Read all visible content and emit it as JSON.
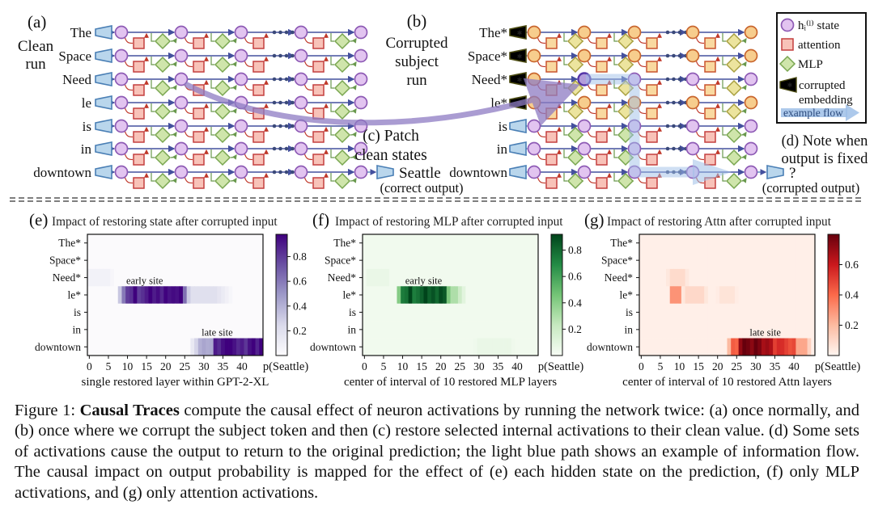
{
  "diagram": {
    "panel_a": {
      "label": "(a)",
      "title_lines": [
        "Clean",
        "run"
      ],
      "tokens": [
        "The",
        "Space",
        "Need",
        "le",
        "is",
        "in",
        "downtown"
      ],
      "output_label": "Seattle",
      "output_sub": "(correct output)"
    },
    "panel_b": {
      "label": "(b)",
      "title_lines": [
        "Corrupted",
        "subject",
        "run"
      ],
      "tokens": [
        "The*",
        "Space*",
        "Need*",
        "le*",
        "is",
        "in",
        "downtown"
      ],
      "corrupted_count": 4,
      "output_label": "?",
      "output_sub": "(corrupted output)"
    },
    "panel_c_lines": [
      "(c) Patch",
      "clean states"
    ],
    "panel_d_lines": [
      "(d) Note when",
      "output is fixed"
    ],
    "legend": {
      "items": [
        {
          "icon": "state-circle-icon",
          "label": "hᵢ⁽ˡ⁾ state"
        },
        {
          "icon": "attention-square-icon",
          "label": "attention"
        },
        {
          "icon": "mlp-diamond-icon",
          "label": "MLP"
        },
        {
          "icon": "corrupted-embedding-icon",
          "label": "corrupted",
          "label2": "embedding"
        },
        {
          "icon": "example-flow-arrow-icon",
          "label": "example flow"
        }
      ]
    },
    "colors": {
      "state_fill": "#e2c4f0",
      "state_stroke": "#8e5bb5",
      "corrupt_fill": "#f7cd8d",
      "corrupt_stroke": "#c9662e",
      "patch_fill": "#b39ddb",
      "patch_stroke": "#5636a8",
      "attn_fill": "#f8c2b8",
      "attn_stroke": "#c43f3f",
      "attn_corrupt_fill": "#f9d9a0",
      "attn_corrupt_stroke": "#c9532e",
      "mlp_fill": "#cfe5ab",
      "mlp_stroke": "#79a650",
      "mlp_corrupt_fill": "#ece49e",
      "mlp_corrupt_stroke": "#a8a041",
      "embed_fill": "#b9d6ec",
      "embed_stroke": "#4a7fb5",
      "embed_corrupt_fill": "#f3e233",
      "embed_corrupt_stroke": "#4a4a10",
      "line": "#44509e",
      "red": "#c0392b",
      "green": "#6a994e",
      "dots": "#3b4a7a",
      "patch_arrow": "#8e7cc3",
      "flow": "#9fc0e8"
    }
  },
  "chart_data": [
    {
      "id": "e",
      "type": "heatmap",
      "panel_label": "(e)",
      "title": "Impact of restoring state after corrupted input",
      "rows": [
        "The*",
        "Space*",
        "Need*",
        "le*",
        "is",
        "in",
        "downtown"
      ],
      "x_ticks": [
        0,
        5,
        10,
        15,
        20,
        25,
        30,
        35,
        40
      ],
      "n_layers": 46,
      "xlabel": "single restored layer within GPT-2-XL",
      "colorbar_label": "p(Seattle)",
      "colorbar_ticks": [
        0.2,
        0.4,
        0.6,
        0.8
      ],
      "vmax": 0.98,
      "base": 0.01,
      "colormap": "purples",
      "annotations": [
        {
          "text": "early site",
          "row": "le*",
          "x": 15
        },
        {
          "text": "late site",
          "row": "downtown",
          "x": 34
        }
      ],
      "blobs": [
        {
          "row": "Need*",
          "from": 0,
          "to": 5,
          "peak": 0.07,
          "fade": 2
        },
        {
          "row": "le*",
          "from": 10,
          "to": 24,
          "peak": 0.92,
          "fade": 3
        },
        {
          "row": "le*",
          "from": 25,
          "to": 33,
          "peak": 0.2,
          "fade": 5
        },
        {
          "row": "downtown",
          "from": 29,
          "to": 32,
          "peak": 0.4,
          "fade": 3
        },
        {
          "row": "downtown",
          "from": 33,
          "to": 46,
          "peak": 0.93,
          "fade": 2
        }
      ]
    },
    {
      "id": "f",
      "type": "heatmap",
      "panel_label": "(f)",
      "title": "Impact of restoring MLP after corrupted input",
      "rows": [
        "The*",
        "Space*",
        "Need*",
        "le*",
        "is",
        "in",
        "downtown"
      ],
      "x_ticks": [
        0,
        5,
        10,
        15,
        20,
        25,
        30,
        35,
        40
      ],
      "n_layers": 46,
      "xlabel": "center of interval of 10 restored MLP layers",
      "colorbar_label": "p(Seattle)",
      "colorbar_ticks": [
        0.2,
        0.4,
        0.6,
        0.8
      ],
      "vmax": 0.92,
      "base": 0.03,
      "colormap": "greens",
      "annotations": [
        {
          "text": "early site",
          "row": "le*",
          "x": 16
        }
      ],
      "blobs": [
        {
          "row": "Need*",
          "from": 1,
          "to": 6,
          "peak": 0.06,
          "fade": 2
        },
        {
          "row": "le*",
          "from": 10,
          "to": 21,
          "peak": 0.85,
          "fade": 2
        },
        {
          "row": "le*",
          "from": 21,
          "to": 24,
          "peak": 0.3,
          "fade": 3
        },
        {
          "row": "downtown",
          "from": 30,
          "to": 38,
          "peak": 0.06,
          "fade": 3
        }
      ]
    },
    {
      "id": "g",
      "type": "heatmap",
      "panel_label": "(g)",
      "title": "Impact of restoring Attn after corrupted input",
      "rows": [
        "The*",
        "Space*",
        "Need*",
        "le*",
        "is",
        "in",
        "downtown"
      ],
      "x_ticks": [
        0,
        5,
        10,
        15,
        20,
        25,
        30,
        35,
        40
      ],
      "n_layers": 46,
      "xlabel": "center of interval of 10 restored Attn layers",
      "colorbar_label": "p(Seattle)",
      "colorbar_ticks": [
        0.2,
        0.4,
        0.6
      ],
      "vmax": 0.8,
      "base": 0.02,
      "colormap": "reds",
      "annotations": [
        {
          "text": "late site",
          "row": "downtown",
          "x": 33
        }
      ],
      "blobs": [
        {
          "row": "Need*",
          "from": 8,
          "to": 11,
          "peak": 0.09,
          "fade": 2
        },
        {
          "row": "le*",
          "from": 8,
          "to": 10,
          "peak": 0.3,
          "fade": 1
        },
        {
          "row": "le*",
          "from": 12,
          "to": 16,
          "peak": 0.1,
          "fade": 2
        },
        {
          "row": "le*",
          "from": 21,
          "to": 24,
          "peak": 0.06,
          "fade": 2
        },
        {
          "row": "downtown",
          "from": 24,
          "to": 26,
          "peak": 0.4,
          "fade": 2
        },
        {
          "row": "downtown",
          "from": 26,
          "to": 34,
          "peak": 0.72,
          "fade": 2
        },
        {
          "row": "downtown",
          "from": 34,
          "to": 40,
          "peak": 0.5,
          "fade": 2
        },
        {
          "row": "downtown",
          "from": 40,
          "to": 43,
          "peak": 0.25,
          "fade": 2
        }
      ]
    }
  ],
  "caption": {
    "fig_label": "Figure 1: ",
    "title_bold": "Causal Traces",
    "body": " compute the causal effect of neuron activations by running the network twice: (a) once normally, and (b) once where we corrupt the subject token and then (c) restore selected internal activations to their clean value. (d) Some sets of activations cause the output to return to the original prediction; the light blue path shows an example of information flow. The causal impact on output probability is mapped for the effect of (e) each hidden state on the prediction, (f) only MLP activations, and (g) only attention activations."
  }
}
